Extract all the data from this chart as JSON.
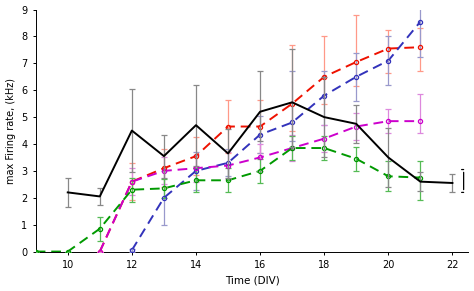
{
  "black_x": [
    10,
    11,
    12,
    13,
    14,
    15,
    16,
    17,
    18,
    19,
    20,
    21,
    22
  ],
  "black_y": [
    2.2,
    2.05,
    4.5,
    3.55,
    4.7,
    3.65,
    5.2,
    5.55,
    5.0,
    4.75,
    3.5,
    2.6,
    2.55
  ],
  "black_ye_lo": [
    0.55,
    0.3,
    1.55,
    0.8,
    1.5,
    0.9,
    1.1,
    1.65,
    1.5,
    0.7,
    1.1,
    0.35,
    0.35
  ],
  "black_ye_hi": [
    0.55,
    0.3,
    1.55,
    0.8,
    1.5,
    0.9,
    1.5,
    2.0,
    1.5,
    0.7,
    1.1,
    0.35,
    0.35
  ],
  "red_x": [
    11,
    12,
    13,
    14,
    15,
    16,
    17,
    18,
    19,
    20,
    21
  ],
  "red_y": [
    0.0,
    2.6,
    3.1,
    3.55,
    4.65,
    4.65,
    5.5,
    6.5,
    7.05,
    7.55,
    7.6
  ],
  "red_ye_lo": [
    0.0,
    0.7,
    0.7,
    0.7,
    1.0,
    1.0,
    1.0,
    1.0,
    0.9,
    0.9,
    0.9
  ],
  "red_ye_hi": [
    0.0,
    0.7,
    0.7,
    0.7,
    1.0,
    1.0,
    2.2,
    1.5,
    1.75,
    0.7,
    0.7
  ],
  "blue_x": [
    12,
    13,
    14,
    15,
    16,
    17,
    18,
    19,
    20,
    21
  ],
  "blue_y": [
    0.05,
    2.0,
    3.0,
    3.3,
    4.35,
    4.8,
    5.8,
    6.5,
    7.1,
    8.55
  ],
  "blue_ye_lo": [
    0.05,
    1.0,
    0.7,
    0.5,
    0.7,
    0.7,
    1.1,
    0.9,
    0.9,
    1.3
  ],
  "blue_ye_hi": [
    0.05,
    1.0,
    0.7,
    0.5,
    0.7,
    1.9,
    0.9,
    0.9,
    0.9,
    0.5
  ],
  "magenta_x": [
    11,
    12,
    13,
    14,
    15,
    16,
    17,
    18,
    19,
    20,
    21
  ],
  "magenta_y": [
    0.0,
    2.6,
    3.0,
    3.1,
    3.2,
    3.5,
    3.85,
    4.2,
    4.65,
    4.85,
    4.85
  ],
  "magenta_ye_lo": [
    0.0,
    0.5,
    0.5,
    0.5,
    0.5,
    0.5,
    0.5,
    0.5,
    0.5,
    0.45,
    0.45
  ],
  "magenta_ye_hi": [
    0.0,
    0.5,
    0.5,
    0.5,
    0.5,
    0.5,
    0.5,
    0.5,
    0.5,
    0.45,
    1.0
  ],
  "green_x": [
    9,
    10,
    11,
    12,
    13,
    14,
    15,
    16,
    17,
    18,
    19,
    20,
    21
  ],
  "green_y": [
    0.0,
    0.0,
    0.85,
    2.3,
    2.35,
    2.65,
    2.65,
    3.0,
    3.85,
    3.85,
    3.45,
    2.8,
    2.75
  ],
  "green_ye_lo": [
    0.0,
    0.0,
    0.45,
    0.45,
    0.35,
    0.45,
    0.45,
    0.45,
    0.45,
    0.45,
    0.45,
    0.55,
    0.85
  ],
  "green_ye_hi": [
    0.0,
    0.0,
    0.45,
    0.45,
    0.35,
    0.45,
    0.45,
    0.45,
    0.45,
    0.45,
    0.45,
    0.55,
    0.6
  ],
  "black_color": "#000000",
  "red_color": "#ee1100",
  "blue_color": "#3333bb",
  "magenta_color": "#cc00cc",
  "green_color": "#009900",
  "red_ecolor": "#ff9988",
  "blue_ecolor": "#9999cc",
  "magenta_ecolor": "#dd88dd",
  "green_ecolor": "#55bb55",
  "xlabel": "Time (DIV)",
  "ylabel": "max Firing rate, (kHz)",
  "ylim": [
    0,
    9
  ],
  "xlim": [
    9.0,
    22.5
  ],
  "yticks": [
    0,
    1,
    2,
    3,
    4,
    5,
    6,
    7,
    8,
    9
  ],
  "xticks": [
    10,
    12,
    14,
    16,
    18,
    20,
    22
  ]
}
